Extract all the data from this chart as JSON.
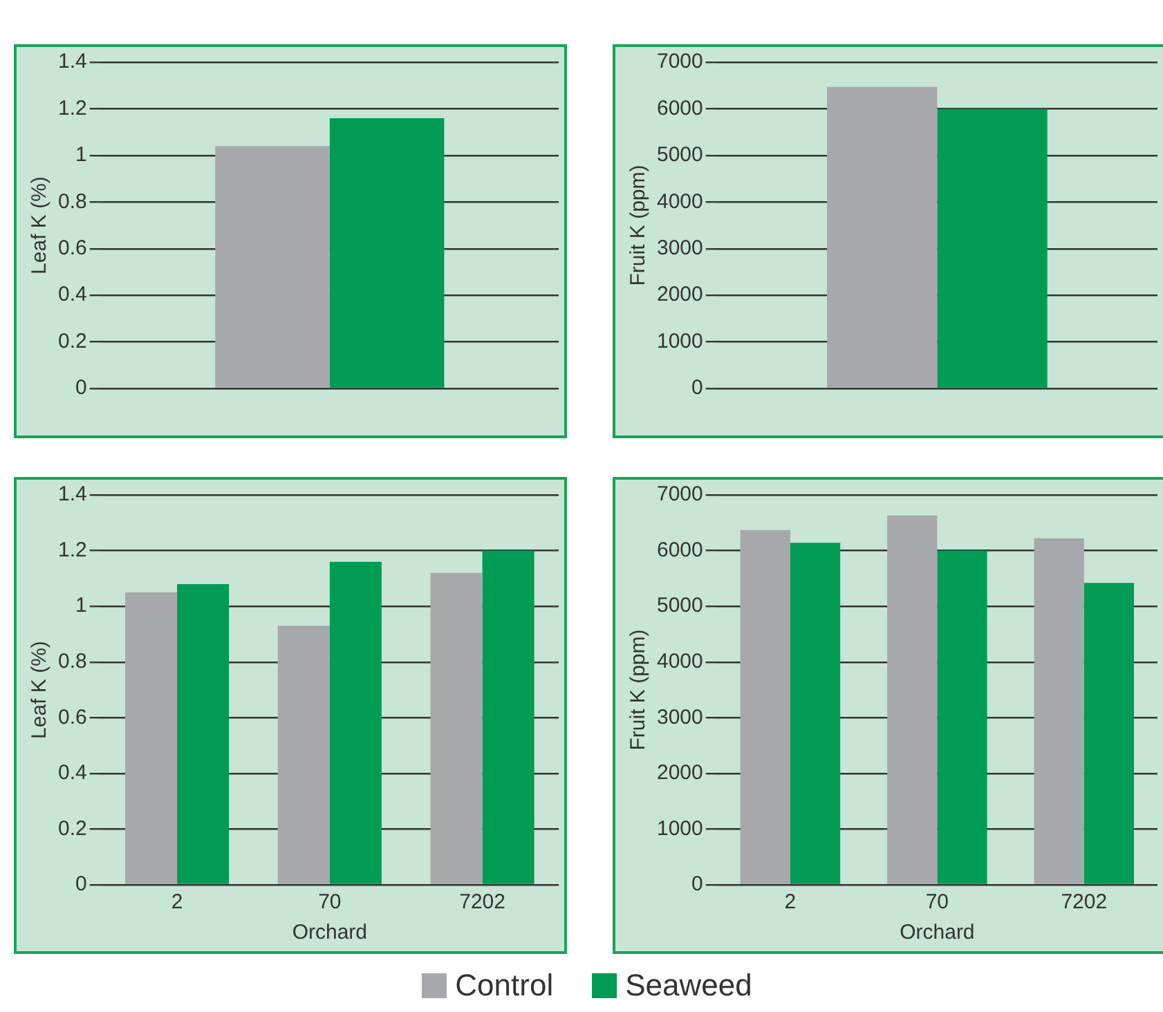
{
  "chart_data": [
    {
      "type": "bar",
      "ylabel": "Leaf K (%)",
      "categories": [
        null
      ],
      "ylim": [
        0,
        1.4
      ],
      "yticks": [
        0,
        0.2,
        0.4,
        0.6,
        0.8,
        1,
        1.2,
        1.4
      ],
      "grid": "y",
      "legend": "bottom",
      "series": [
        {
          "name": "Control",
          "color": "#a7a8ab",
          "values": [
            1.04
          ]
        },
        {
          "name": "Seaweed",
          "color": "#009b54",
          "values": [
            1.16
          ]
        }
      ]
    },
    {
      "type": "bar",
      "ylabel": "Fruit K (ppm)",
      "categories": [
        null
      ],
      "ylim": [
        0,
        7000
      ],
      "yticks": [
        0,
        1000,
        2000,
        3000,
        4000,
        5000,
        6000,
        7000
      ],
      "grid": "y",
      "series": [
        {
          "color": "#a7a8ab",
          "values": [
            6470
          ]
        },
        {
          "color": "#009b54",
          "values": [
            6000
          ]
        }
      ]
    },
    {
      "type": "bar",
      "ylabel": "Leaf K (%)",
      "xlabel": "Orchard",
      "categories": [
        "2",
        "70",
        "7202"
      ],
      "ylim": [
        0,
        1.4
      ],
      "yticks": [
        0,
        0.2,
        0.4,
        0.6,
        0.8,
        1,
        1.2,
        1.4
      ],
      "grid": "y",
      "series": [
        {
          "color": "#a7a8ab",
          "values": [
            1.05,
            0.93,
            1.12
          ]
        },
        {
          "color": "#009b54",
          "values": [
            1.08,
            1.16,
            1.2
          ]
        }
      ]
    },
    {
      "type": "bar",
      "ylabel": "Fruit K (ppm)",
      "xlabel": "Orchard",
      "categories": [
        "2",
        "70",
        "7202"
      ],
      "ylim": [
        0,
        7000
      ],
      "yticks": [
        0,
        1000,
        2000,
        3000,
        4000,
        5000,
        6000,
        7000
      ],
      "grid": "y",
      "series": [
        {
          "color": "#a7a8ab",
          "values": [
            6370,
            6630,
            6220
          ]
        },
        {
          "color": "#009b54",
          "values": [
            6140,
            6000,
            5420
          ]
        }
      ]
    }
  ]
}
